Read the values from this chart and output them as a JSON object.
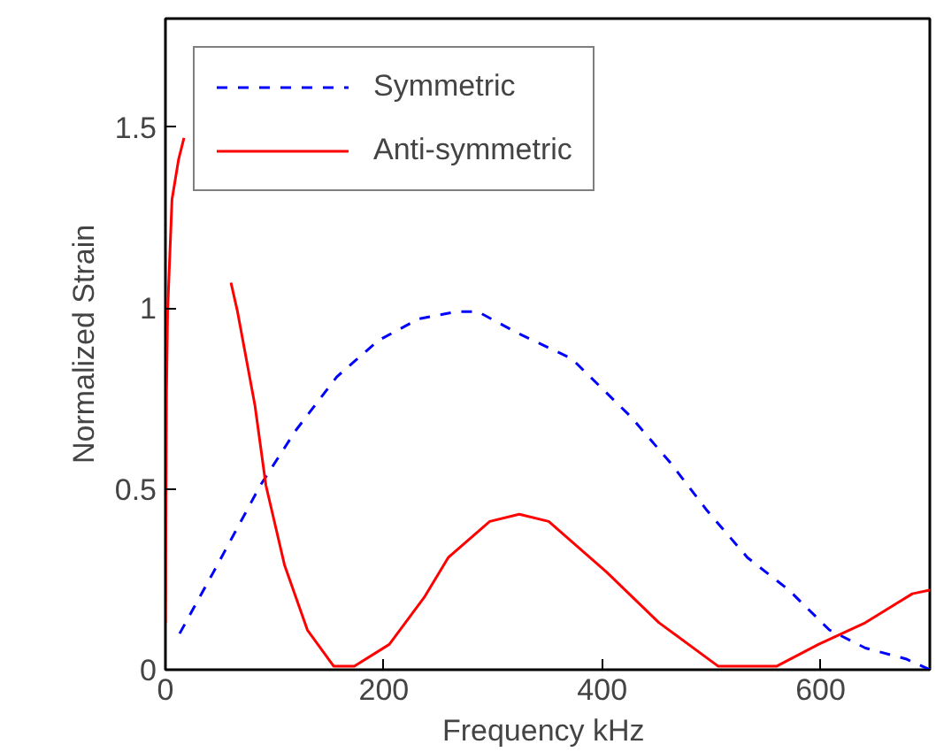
{
  "chart_data": {
    "type": "line",
    "xlabel": "Frequency  kHz",
    "ylabel": "Normalized Strain",
    "xlim": [
      0,
      700
    ],
    "ylim": [
      0,
      1.8
    ],
    "xticks": [
      0,
      200,
      400,
      600
    ],
    "yticks": [
      0,
      0.5,
      1,
      1.5
    ],
    "grid": false,
    "legend": "top left",
    "marker": "none",
    "series": [
      {
        "name": "Symmetric",
        "color": "#0000ff",
        "line_style": "dashed",
        "x": [
          13,
          44,
          87,
          119,
          157,
          195,
          232,
          267,
          286,
          323,
          372,
          426,
          463,
          496,
          533,
          571,
          608,
          641,
          678,
          700
        ],
        "values": [
          0.1,
          0.27,
          0.51,
          0.66,
          0.81,
          0.91,
          0.97,
          0.99,
          0.99,
          0.93,
          0.86,
          0.7,
          0.57,
          0.44,
          0.31,
          0.22,
          0.11,
          0.06,
          0.03,
          0
        ]
      },
      {
        "name": "Anti-symmetric",
        "color": "#ff0000",
        "line_style": "solid",
        "x": [
          0,
          1,
          2,
          6,
          12,
          17,
          22,
          60,
          66,
          82,
          92,
          109,
          130,
          154,
          173,
          205,
          237,
          259,
          297,
          324,
          351,
          404,
          452,
          506,
          560,
          598,
          641,
          684,
          700
        ],
        "values": [
          0.13,
          0.77,
          0.99,
          1.3,
          1.41,
          1.47,
          null,
          1.07,
          0.99,
          0.73,
          0.51,
          0.29,
          0.11,
          0.01,
          0.01,
          0.07,
          0.2,
          0.31,
          0.41,
          0.43,
          0.41,
          0.27,
          0.13,
          0.01,
          0.01,
          0.07,
          0.13,
          0.21,
          0.22
        ]
      }
    ]
  }
}
